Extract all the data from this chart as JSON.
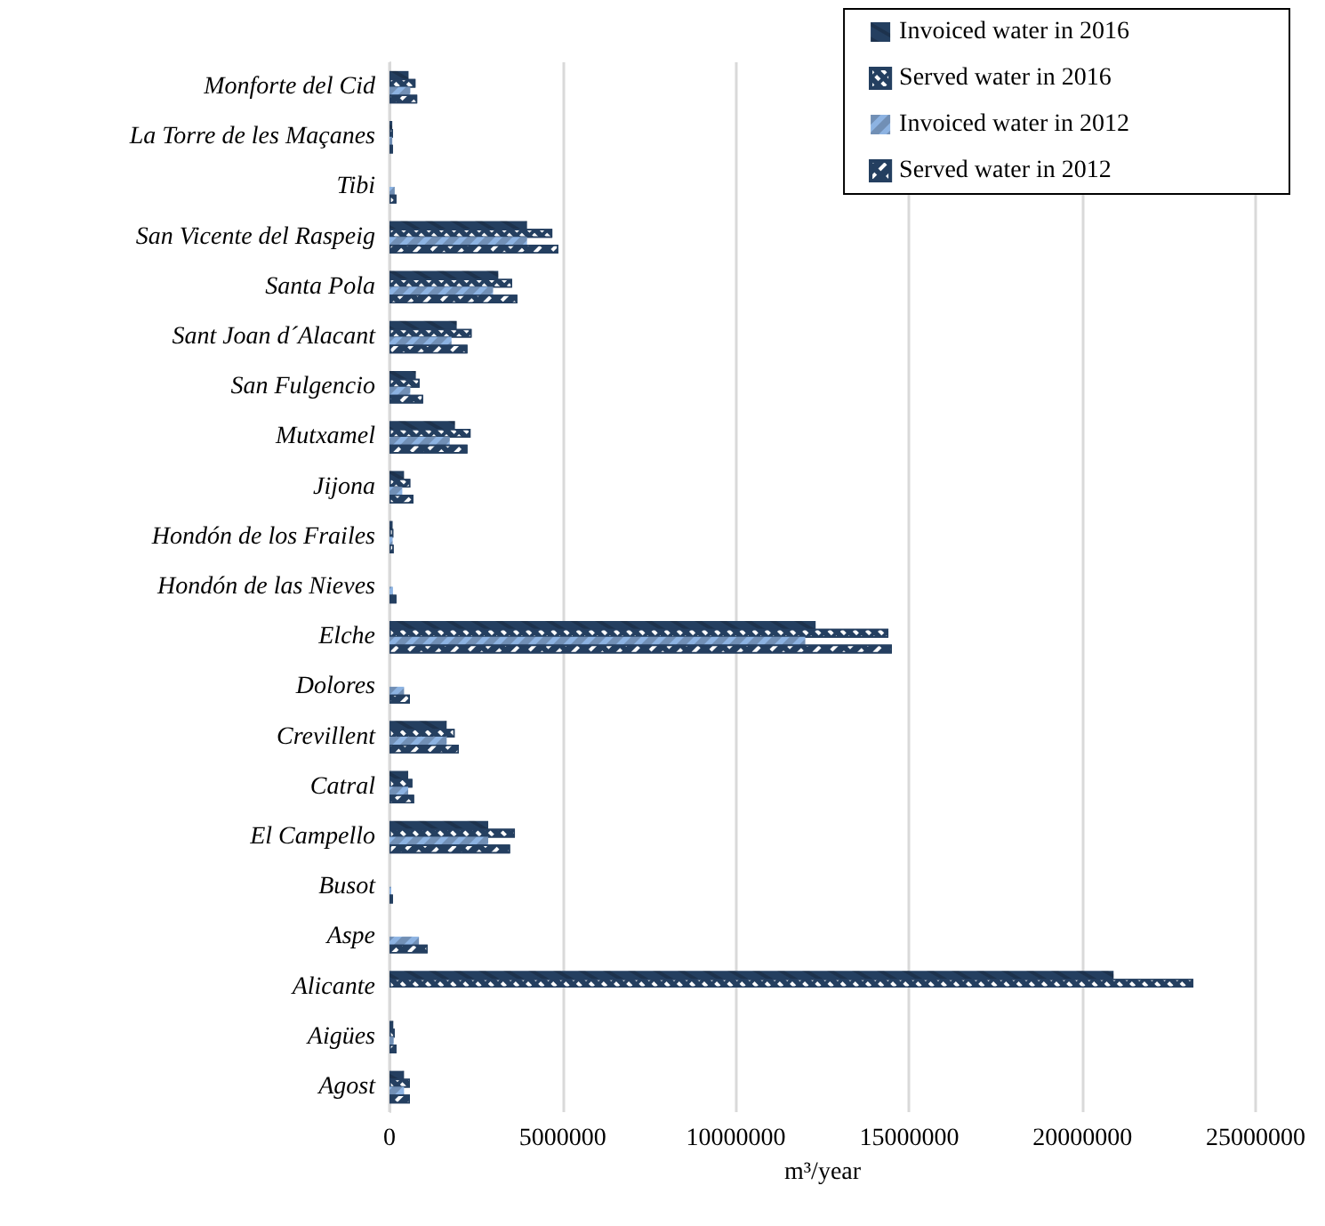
{
  "chart_data": {
    "type": "bar",
    "orientation": "horizontal",
    "xlabel": "m³/year",
    "categories": [
      "Monforte del Cid",
      "La Torre de les Maçanes",
      "Tibi",
      "San Vicente del Raspeig",
      "Santa Pola",
      "Sant Joan d´Alacant",
      "San Fulgencio",
      "Mutxamel",
      "Jijona",
      "Hondón de los Frailes",
      "Hondón de las Nieves",
      "Elche",
      "Dolores",
      "Crevillent",
      "Catral",
      "El Campello",
      "Busot",
      "Aspe",
      "Alicante",
      "Aigües",
      "Agost"
    ],
    "series": [
      {
        "name": "Invoiced water in 2016",
        "color": "#243f60",
        "values": [
          550000,
          80000,
          null,
          3970000,
          3140000,
          1940000,
          760000,
          1890000,
          420000,
          90000,
          null,
          12300000,
          null,
          1650000,
          540000,
          2850000,
          null,
          null,
          20900000,
          110000,
          420000
        ]
      },
      {
        "name": "Served water in 2016",
        "color": "#243f60",
        "values": [
          750000,
          100000,
          null,
          4700000,
          3540000,
          2370000,
          870000,
          2340000,
          600000,
          110000,
          null,
          14400000,
          null,
          1880000,
          660000,
          3620000,
          null,
          null,
          23200000,
          150000,
          590000
        ]
      },
      {
        "name": "Invoiced water in 2012",
        "color": "#8db3e2",
        "values": [
          600000,
          80000,
          150000,
          3970000,
          2990000,
          1790000,
          600000,
          1740000,
          370000,
          90000,
          100000,
          12000000,
          420000,
          1650000,
          540000,
          2850000,
          50000,
          850000,
          null,
          120000,
          420000
        ]
      },
      {
        "name": "Served water in 2012",
        "color": "#243f60",
        "values": [
          800000,
          100000,
          200000,
          4870000,
          3690000,
          2250000,
          970000,
          2250000,
          690000,
          120000,
          200000,
          14500000,
          590000,
          2000000,
          710000,
          3480000,
          100000,
          1100000,
          null,
          200000,
          590000
        ]
      }
    ],
    "xlim": [
      0,
      25000000
    ],
    "xticks": [
      0,
      5000000,
      10000000,
      15000000,
      20000000,
      25000000
    ],
    "grid": "x",
    "legend": "top right"
  }
}
